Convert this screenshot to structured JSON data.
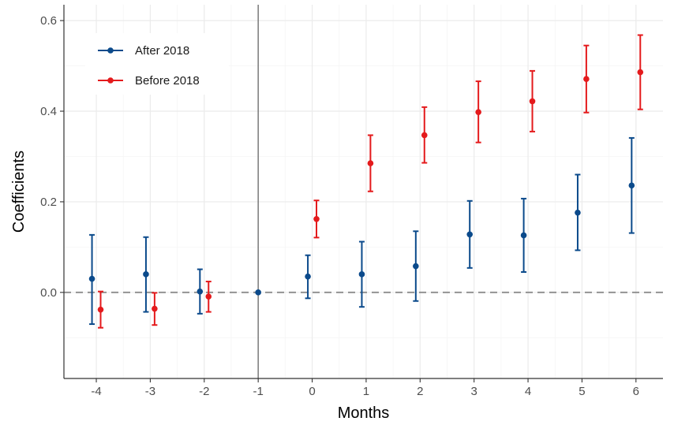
{
  "chart_data": {
    "type": "scatter",
    "subtype": "event-study point estimates with confidence intervals",
    "xlabel": "Months",
    "ylabel": "Coefficients",
    "x_ticks": [
      "-4",
      "-3",
      "-2",
      "-1",
      "0",
      "1",
      "2",
      "3",
      "4",
      "5",
      "6"
    ],
    "y_ticks": [
      "0.0",
      "0.2",
      "0.4",
      "0.6"
    ],
    "ylim": [
      -0.19,
      0.635
    ],
    "xlim": [
      -4.6,
      6.5
    ],
    "grid": true,
    "reference_lines": {
      "vertical_at_x": -1,
      "horizontal_dashed_at_y": 0
    },
    "legend_position": "top-left",
    "series": [
      {
        "name": "After 2018",
        "color": "#0b4a8b",
        "points": [
          {
            "x": -4,
            "y": 0.03,
            "lo": -0.07,
            "hi": 0.127
          },
          {
            "x": -3,
            "y": 0.04,
            "lo": -0.043,
            "hi": 0.122
          },
          {
            "x": -2,
            "y": 0.002,
            "lo": -0.047,
            "hi": 0.051
          },
          {
            "x": -1,
            "y": 0.0,
            "lo": 0.0,
            "hi": 0.0
          },
          {
            "x": 0,
            "y": 0.035,
            "lo": -0.013,
            "hi": 0.082
          },
          {
            "x": 1,
            "y": 0.04,
            "lo": -0.032,
            "hi": 0.112
          },
          {
            "x": 2,
            "y": 0.058,
            "lo": -0.019,
            "hi": 0.135
          },
          {
            "x": 3,
            "y": 0.128,
            "lo": 0.054,
            "hi": 0.202
          },
          {
            "x": 4,
            "y": 0.126,
            "lo": 0.045,
            "hi": 0.207
          },
          {
            "x": 5,
            "y": 0.176,
            "lo": 0.093,
            "hi": 0.26
          },
          {
            "x": 6,
            "y": 0.236,
            "lo": 0.131,
            "hi": 0.341
          }
        ]
      },
      {
        "name": "Before 2018",
        "color": "#e41a1c",
        "points": [
          {
            "x": -4,
            "y": -0.038,
            "lo": -0.078,
            "hi": 0.002
          },
          {
            "x": -3,
            "y": -0.036,
            "lo": -0.072,
            "hi": -0.001
          },
          {
            "x": -2,
            "y": -0.009,
            "lo": -0.043,
            "hi": 0.024
          },
          {
            "x": 0,
            "y": 0.162,
            "lo": 0.121,
            "hi": 0.203
          },
          {
            "x": 1,
            "y": 0.285,
            "lo": 0.223,
            "hi": 0.347
          },
          {
            "x": 2,
            "y": 0.347,
            "lo": 0.286,
            "hi": 0.409
          },
          {
            "x": 3,
            "y": 0.398,
            "lo": 0.331,
            "hi": 0.466
          },
          {
            "x": 4,
            "y": 0.422,
            "lo": 0.355,
            "hi": 0.489
          },
          {
            "x": 5,
            "y": 0.471,
            "lo": 0.397,
            "hi": 0.545
          },
          {
            "x": 6,
            "y": 0.486,
            "lo": 0.404,
            "hi": 0.568
          }
        ]
      }
    ],
    "colors": {
      "panel_background": "#ffffff",
      "grid_major": "#ebebeb",
      "grid_minor": "#f5f5f5",
      "panel_border": "#333333",
      "vertical_ref": "#7a7a7a",
      "zero_line": "#8c8c8c"
    }
  }
}
